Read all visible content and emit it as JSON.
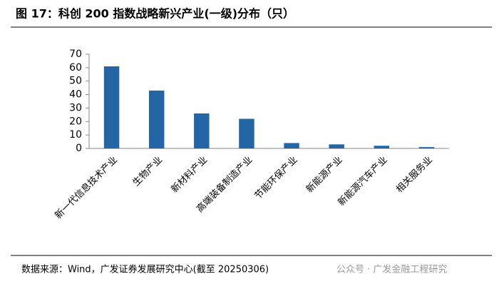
{
  "chart_data": {
    "type": "bar",
    "title": "图 17：科创 200 指数战略新兴产业(一级)分布（只）",
    "categories": [
      "新一代信息技术产业",
      "生物产业",
      "新材料产业",
      "高端装备制造产业",
      "节能环保产业",
      "新能源产业",
      "新能源汽车产业",
      "相关服务业"
    ],
    "values": [
      61,
      43,
      26,
      22,
      4,
      3,
      2,
      1
    ],
    "color": "#2465a6",
    "ylim": [
      0,
      70
    ],
    "yticks": [
      0,
      10,
      20,
      30,
      40,
      50,
      60,
      70
    ],
    "grid": false
  },
  "source": "数据来源：Wind，广发证券发展研究中心(截至 20250306)",
  "watermark": "公众号 · 广发金融工程研究"
}
